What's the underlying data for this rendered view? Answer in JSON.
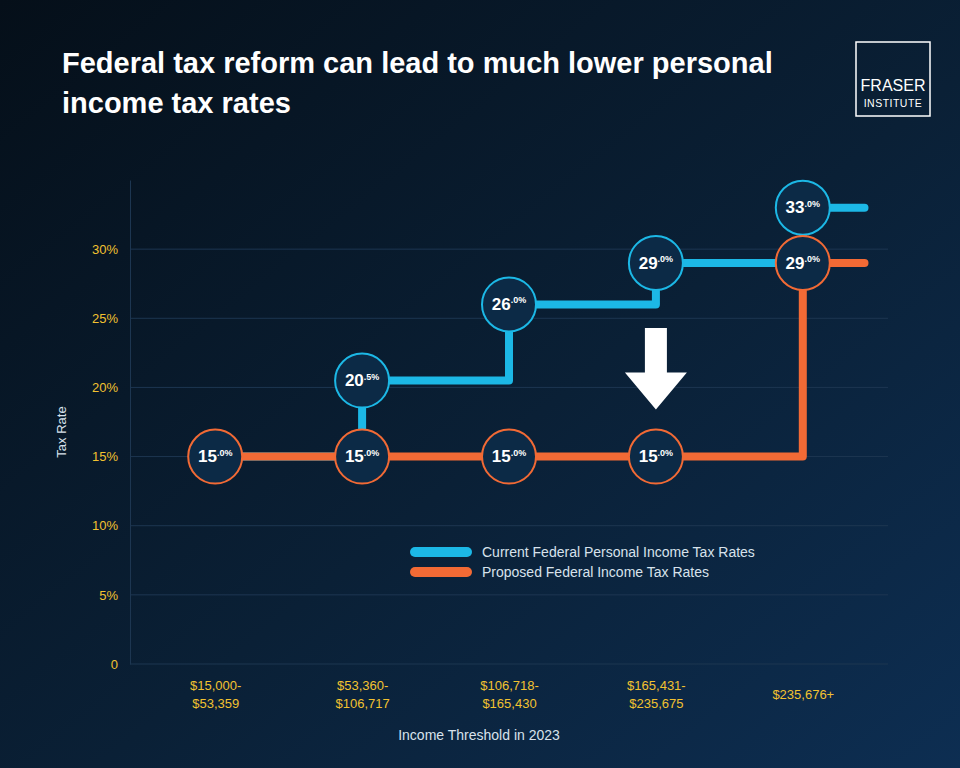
{
  "chart_data": {
    "type": "line",
    "title": "Federal tax reform can lead to much lower personal income tax rates",
    "annotations": [
      "FRASER",
      "INSTITUTE"
    ],
    "x_label": "Income Threshold in 2023",
    "y_label": "Tax Rate",
    "categories": [
      "$15,000-$53,359",
      "$53,360-$106,717",
      "$106,718-$165,430",
      "$165,431-$235,675",
      "$235,676+"
    ],
    "series": [
      {
        "name": "Current Federal Personal Income Tax Rates",
        "color": "#1cb8e6",
        "values": [
          15,
          20.5,
          26,
          29,
          33
        ],
        "value_labels": [
          null,
          "20.5%",
          "26.0%",
          "29.0%",
          "33.0%"
        ]
      },
      {
        "name": "Proposed Federal Income Tax Rates",
        "color": "#f26a35",
        "values": [
          15,
          15,
          15,
          15,
          29
        ],
        "value_labels": [
          "15.0%",
          "15.0%",
          "15.0%",
          "15.0%",
          "29.0%"
        ]
      }
    ],
    "ylim": [
      0,
      35
    ],
    "yticks": [
      0,
      {
        "value": 5,
        "label": "5%"
      },
      {
        "value": 10,
        "label": "10%"
      },
      {
        "value": 15,
        "label": "15%"
      },
      {
        "value": 20,
        "label": "20%"
      },
      {
        "value": 25,
        "label": "25%"
      },
      {
        "value": 30,
        "label": "30%"
      }
    ],
    "grid": true,
    "legend": "bottom-right",
    "data_labels": true,
    "line_style": "step",
    "marker": "circle"
  }
}
